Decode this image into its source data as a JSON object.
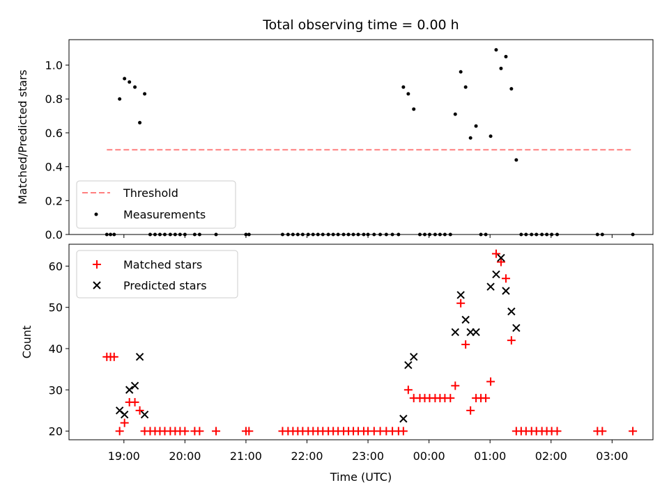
{
  "chart_data": [
    {
      "type": "scatter",
      "title": "Total observing time = 0.00 h",
      "xlabel": "",
      "ylabel": "Matched/Predicted stars",
      "ylim": [
        0,
        1.15
      ],
      "yticks": [
        0.0,
        0.2,
        0.4,
        0.6,
        0.8,
        1.0
      ],
      "ytick_labels": [
        "0.0",
        "0.2",
        "0.4",
        "0.6",
        "0.8",
        "1.0"
      ],
      "xlim": [
        18.1,
        27.67
      ],
      "legend": {
        "placement": "lower-left",
        "entries": [
          "Threshold",
          "Measurements"
        ]
      },
      "threshold": {
        "name": "Threshold",
        "value": 0.5,
        "x_range": [
          18.72,
          27.33
        ],
        "color": "#ff7f7f"
      },
      "series": [
        {
          "name": "Measurements",
          "color": "#000000",
          "x": [
            18.72,
            18.78,
            18.84,
            18.93,
            19.01,
            19.09,
            19.18,
            19.26,
            19.34,
            19.43,
            19.51,
            19.59,
            19.67,
            19.76,
            19.84,
            19.92,
            20.0,
            20.16,
            20.24,
            20.51,
            21.0,
            21.05,
            21.6,
            21.69,
            21.77,
            21.85,
            21.93,
            22.02,
            22.1,
            22.18,
            22.26,
            22.35,
            22.43,
            22.51,
            22.6,
            22.68,
            22.76,
            22.84,
            22.93,
            23.0,
            23.1,
            23.2,
            23.3,
            23.4,
            23.5,
            23.58,
            23.66,
            23.75,
            23.85,
            23.93,
            24.01,
            24.1,
            24.18,
            24.26,
            24.35,
            24.43,
            24.52,
            24.6,
            24.68,
            24.77,
            24.85,
            24.93,
            25.01,
            25.1,
            25.18,
            25.26,
            25.35,
            25.43,
            25.51,
            25.59,
            25.68,
            25.76,
            25.85,
            25.93,
            26.01,
            26.1,
            26.76,
            26.84,
            27.34
          ],
          "y": [
            0,
            0,
            0,
            0.8,
            0.92,
            0.9,
            0.87,
            0.66,
            0.83,
            0,
            0,
            0,
            0,
            0,
            0,
            0,
            0,
            0,
            0,
            0,
            0,
            0,
            0,
            0,
            0,
            0,
            0,
            0,
            0,
            0,
            0,
            0,
            0,
            0,
            0,
            0,
            0,
            0,
            0,
            0,
            0,
            0,
            0,
            0,
            0,
            0.87,
            0.83,
            0.74,
            0,
            0,
            0,
            0,
            0,
            0,
            0,
            0.71,
            0.96,
            0.87,
            0.57,
            0.64,
            0,
            0,
            0.58,
            1.09,
            0.98,
            1.05,
            0.86,
            0.44,
            0,
            0,
            0,
            0,
            0,
            0,
            0,
            0,
            0,
            0,
            0
          ]
        }
      ]
    },
    {
      "type": "scatter",
      "title": "",
      "xlabel": "Time (UTC)",
      "ylabel": "Count",
      "ylim": [
        17.9,
        65.3
      ],
      "yticks": [
        20,
        30,
        40,
        50,
        60
      ],
      "ytick_labels": [
        "20",
        "30",
        "40",
        "50",
        "60"
      ],
      "xlim": [
        18.1,
        27.67
      ],
      "xticks": [
        19,
        20,
        21,
        22,
        23,
        24,
        25,
        26,
        27
      ],
      "xtick_labels": [
        "19:00",
        "20:00",
        "21:00",
        "22:00",
        "23:00",
        "00:00",
        "01:00",
        "02:00",
        "03:00"
      ],
      "legend": {
        "placement": "upper-left",
        "entries": [
          "Matched stars",
          "Predicted stars"
        ]
      },
      "series": [
        {
          "name": "Matched stars",
          "marker": "plus",
          "color": "#ff0000",
          "x": [
            18.72,
            18.78,
            18.84,
            18.93,
            19.01,
            19.09,
            19.18,
            19.26,
            19.34,
            19.43,
            19.51,
            19.59,
            19.67,
            19.76,
            19.84,
            19.92,
            20.0,
            20.16,
            20.24,
            20.51,
            21.0,
            21.05,
            21.6,
            21.69,
            21.77,
            21.85,
            21.93,
            22.02,
            22.1,
            22.18,
            22.26,
            22.35,
            22.43,
            22.51,
            22.6,
            22.68,
            22.76,
            22.84,
            22.93,
            23.0,
            23.1,
            23.2,
            23.3,
            23.4,
            23.5,
            23.58,
            23.66,
            23.75,
            23.85,
            23.93,
            24.01,
            24.1,
            24.18,
            24.26,
            24.35,
            24.43,
            24.52,
            24.6,
            24.68,
            24.77,
            24.85,
            24.93,
            25.01,
            25.1,
            25.18,
            25.26,
            25.35,
            25.43,
            25.51,
            25.59,
            25.68,
            25.76,
            25.85,
            25.93,
            26.01,
            26.1,
            26.76,
            26.84,
            27.34
          ],
          "y": [
            38,
            38,
            38,
            20,
            22,
            27,
            27,
            25,
            20,
            20,
            20,
            20,
            20,
            20,
            20,
            20,
            20,
            20,
            20,
            20,
            20,
            20,
            20,
            20,
            20,
            20,
            20,
            20,
            20,
            20,
            20,
            20,
            20,
            20,
            20,
            20,
            20,
            20,
            20,
            20,
            20,
            20,
            20,
            20,
            20,
            20,
            30,
            28,
            28,
            28,
            28,
            28,
            28,
            28,
            28,
            31,
            51,
            41,
            25,
            28,
            28,
            28,
            32,
            63,
            61,
            57,
            42,
            20,
            20,
            20,
            20,
            20,
            20,
            20,
            20,
            20,
            20,
            20,
            20
          ]
        },
        {
          "name": "Predicted stars",
          "marker": "x",
          "color": "#000000",
          "x": [
            18.93,
            19.01,
            19.09,
            19.18,
            19.26,
            19.34,
            23.58,
            23.66,
            23.75,
            24.43,
            24.52,
            24.6,
            24.68,
            24.77,
            25.01,
            25.1,
            25.18,
            25.26,
            25.35,
            25.43
          ],
          "y": [
            25,
            24,
            30,
            31,
            38,
            24,
            23,
            36,
            38,
            44,
            53,
            47,
            44,
            44,
            55,
            58,
            62,
            54,
            49,
            45
          ]
        }
      ]
    }
  ]
}
